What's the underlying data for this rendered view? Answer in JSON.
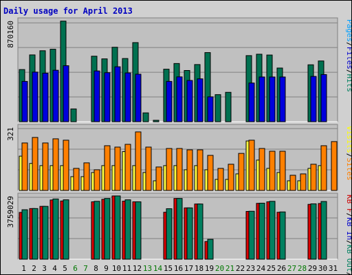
{
  "chart_data": {
    "type": "bar",
    "title": "Daily usage for April 2013",
    "colors": {
      "pages": "#0000dd",
      "files": "#008040",
      "hits": "#007050",
      "visits": "#ffff40",
      "sites": "#ff8000",
      "kb_in": "#008060",
      "kb_out": "#dd0000",
      "frame_bg": "#d0d0d0",
      "plot_bg": "#c0c0c0",
      "weekday_text": "#000000",
      "weekend_text": "#007700",
      "title_text": "#0000c0"
    },
    "categories": [
      "1",
      "2",
      "3",
      "4",
      "5",
      "6",
      "7",
      "8",
      "9",
      "10",
      "11",
      "12",
      "13",
      "14",
      "15",
      "16",
      "17",
      "18",
      "19",
      "20",
      "21",
      "22",
      "23",
      "24",
      "25",
      "26",
      "27",
      "28",
      "29",
      "30",
      "31"
    ],
    "weekend_days": [
      "6",
      "7",
      "13",
      "14",
      "20",
      "21",
      "27",
      "28"
    ],
    "panels": [
      {
        "max_label": "870160",
        "legend": [
          {
            "text": "Pages",
            "color": "#00a0ff"
          },
          {
            "text": "/",
            "color": "#000000"
          },
          {
            "text": "Files",
            "color": "#0000cc"
          },
          {
            "text": "/",
            "color": "#000000"
          },
          {
            "text": "Hits",
            "color": "#008060"
          }
        ],
        "ylim": [
          0,
          870160
        ],
        "series": [
          {
            "name": "Hits",
            "color": "#007050",
            "values": [
              449000,
              575000,
              611000,
              624000,
              866000,
              110000,
              0,
              564000,
              541000,
              641000,
              544000,
              681000,
              76000,
              12000,
              452000,
              501000,
              441000,
              492000,
              595000,
              233000,
              253000,
              0,
              569000,
              581000,
              574000,
              462000,
              0,
              0,
              490000,
              523000,
              0
            ]
          },
          {
            "name": "Files",
            "color": "#0000dd",
            "values": [
              347000,
              427000,
              418000,
              443000,
              482000,
              0,
              0,
              437000,
              422000,
              473000,
              420000,
              409000,
              0,
              0,
              347000,
              386000,
              355000,
              369000,
              214000,
              0,
              0,
              0,
              333000,
              385000,
              385000,
              385000,
              0,
              0,
              390000,
              406000,
              0
            ]
          },
          {
            "name": "Pages",
            "color": "#00a0ff",
            "values": [
              0,
              0,
              0,
              0,
              0,
              0,
              0,
              0,
              0,
              0,
              0,
              0,
              0,
              0,
              0,
              0,
              0,
              0,
              0,
              0,
              0,
              0,
              0,
              0,
              0,
              0,
              0,
              0,
              0,
              0,
              0
            ]
          }
        ]
      },
      {
        "max_label": "321",
        "legend": [
          {
            "text": "Visits",
            "color": "#ffff00"
          },
          {
            "text": "/",
            "color": "#000000"
          },
          {
            "text": "Sites",
            "color": "#ff8000"
          }
        ],
        "ylim": [
          0,
          321
        ],
        "series": [
          {
            "name": "Visits",
            "color": "#ffff40",
            "values": [
              174,
              137,
              126,
              126,
              126,
              70,
              70,
              91,
              126,
              126,
              197,
              126,
              91,
              49,
              126,
              126,
              105,
              126,
              105,
              56,
              56,
              84,
              251,
              154,
              112,
              91,
              49,
              49,
              112,
              126,
              0
            ]
          },
          {
            "name": "Sites",
            "color": "#ff8000",
            "values": [
              241,
              269,
              241,
              262,
              255,
              112,
              140,
              105,
              227,
              220,
              234,
              297,
              220,
              119,
              213,
              213,
              206,
              206,
              178,
              112,
              133,
              188,
              255,
              213,
              199,
              199,
              77,
              84,
              133,
              227,
              248
            ]
          }
        ]
      },
      {
        "max_label": "3759029",
        "legend": [
          {
            "text": "KB F",
            "color": "#cc0000"
          },
          {
            "text": "/",
            "color": "#000000"
          },
          {
            "text": "KB In",
            "color": "#0000cc"
          },
          {
            "text": "/",
            "color": "#000000"
          },
          {
            "text": "KB Out",
            "color": "#008060"
          },
          {
            "text": "/",
            "color": "#000000"
          }
        ],
        "ylim": [
          0,
          3759029
        ],
        "series": [
          {
            "name": "KB F",
            "color": "#dd0000",
            "values": [
              2780000,
              3010000,
              3140000,
              3520000,
              3460000,
              0,
              0,
              3410000,
              3560000,
              3760000,
              3450000,
              3410000,
              0,
              0,
              2790000,
              3610000,
              3050000,
              3280000,
              1050000,
              0,
              0,
              0,
              2840000,
              3320000,
              3410000,
              2790000,
              0,
              0,
              3260000,
              3310000,
              0
            ]
          },
          {
            "name": "KB Out",
            "color": "#008060",
            "values": [
              2940000,
              3010000,
              3140000,
              3580000,
              3530000,
              0,
              0,
              3440000,
              3610000,
              3760000,
              3530000,
              3410000,
              0,
              0,
              3000000,
              3610000,
              3050000,
              3280000,
              1180000,
              0,
              0,
              0,
              2850000,
              3330000,
              3440000,
              2810000,
              0,
              0,
              3290000,
              3430000,
              0
            ]
          }
        ]
      }
    ]
  }
}
